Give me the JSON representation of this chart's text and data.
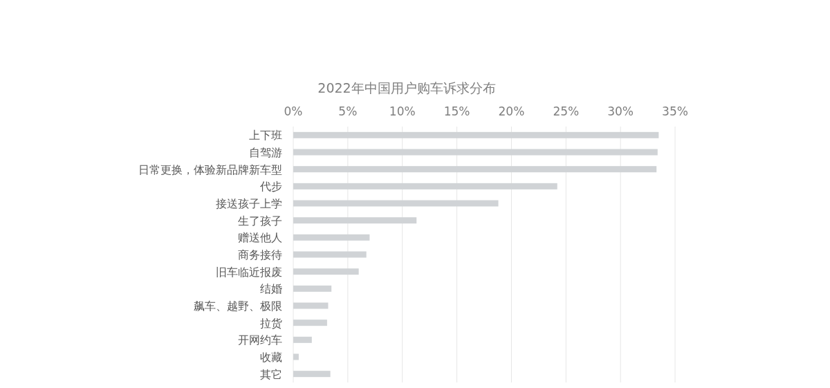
{
  "chart_data": {
    "type": "bar",
    "orientation": "horizontal",
    "title": "2022年中国用户购车诉求分布",
    "categories": [
      "上下班",
      "自驾游",
      "日常更换，体验新品牌新车型",
      "代步",
      "接送孩子上学",
      "生了孩子",
      "赠送他人",
      "商务接待",
      "旧车临近报废",
      "结婚",
      "飙车、越野、极限",
      "拉货",
      "开网约车",
      "收藏",
      "其它"
    ],
    "values": [
      33.5,
      33.4,
      33.3,
      24.2,
      18.8,
      11.3,
      7.0,
      6.7,
      6.0,
      3.5,
      3.2,
      3.1,
      1.7,
      0.5,
      3.4
    ],
    "color": "#d0d3d6",
    "xlim": [
      0,
      35
    ],
    "xticks": [
      {
        "value": 0,
        "label": "0%"
      },
      {
        "value": 5,
        "label": "5%"
      },
      {
        "value": 10,
        "label": "10%"
      },
      {
        "value": 15,
        "label": "15%"
      },
      {
        "value": 20,
        "label": "20%"
      },
      {
        "value": 25,
        "label": "25%"
      },
      {
        "value": 30,
        "label": "30%"
      },
      {
        "value": 35,
        "label": "35%"
      }
    ],
    "grid": "x"
  }
}
